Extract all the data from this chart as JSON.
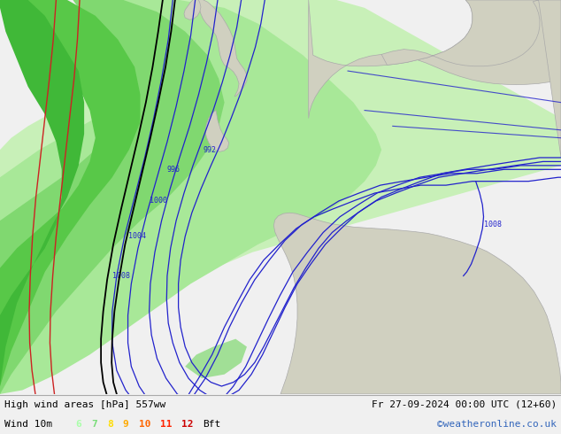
{
  "title_left": "High wind areas [hPa] 557ww",
  "title_right": "Fr 27-09-2024 00:00 UTC (12+60)",
  "subtitle_left": "Wind 10m",
  "subtitle_right": "©weatheronline.co.uk",
  "bft_labels": [
    "6",
    "7",
    "8",
    "9",
    "10",
    "11",
    "12"
  ],
  "bft_colors": [
    "#aaffaa",
    "#77dd77",
    "#ffdd00",
    "#ffaa00",
    "#ff6600",
    "#ff2200",
    "#cc0000"
  ],
  "bft_suffix": "Bft",
  "ocean_color": "#e8e8e8",
  "land_color": "#d0d0c0",
  "land_border": "#aaaaaa",
  "green_colors": [
    "#c8f0b8",
    "#a8e898",
    "#80d870",
    "#58c848",
    "#40b838"
  ],
  "isobar_color": "#2222cc",
  "black_line_color": "#000000",
  "red_line_color": "#cc0000",
  "bottom_bar_color": "#f0f0f0",
  "figsize": [
    6.34,
    4.9
  ],
  "dpi": 100,
  "isobar_labels": [
    "992",
    "996",
    "1000",
    "1004",
    "1008"
  ],
  "isobar_label_color": "#2222cc"
}
